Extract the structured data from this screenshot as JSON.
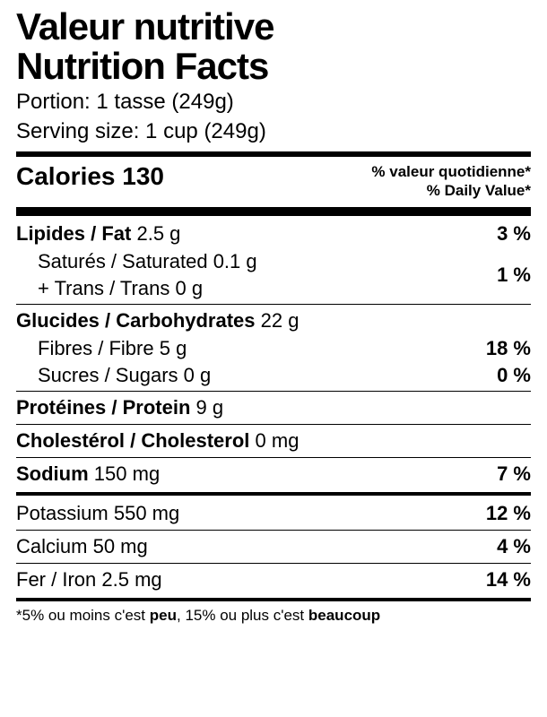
{
  "title_fr": "Valeur nutritive",
  "title_en": "Nutrition Facts",
  "serving_fr": "Portion: 1 tasse (249g)",
  "serving_en": "Serving size: 1 cup (249g)",
  "calories_label": "Calories 130",
  "dv_head_fr": "% valeur quotidienne*",
  "dv_head_en": "% Daily Value*",
  "fat": {
    "label": "Lipides / Fat",
    "amount": "2.5 g",
    "pct": "3 %"
  },
  "sat": {
    "label": "Saturés / Saturated",
    "amount": "0.1 g"
  },
  "trans": {
    "label": "+ Trans / Trans",
    "amount": "0 g"
  },
  "sat_trans_pct": "1 %",
  "carb": {
    "label": "Glucides / Carbohydrates",
    "amount": "22 g"
  },
  "fibre": {
    "label": "Fibres / Fibre",
    "amount": "5 g",
    "pct": "18 %"
  },
  "sugars": {
    "label": "Sucres / Sugars",
    "amount": "0 g",
    "pct": "0 %"
  },
  "protein": {
    "label": "Protéines / Protein",
    "amount": "9 g"
  },
  "chol": {
    "label": "Cholestérol / Cholesterol",
    "amount": "0 mg"
  },
  "sodium": {
    "label": "Sodium",
    "amount": "150 mg",
    "pct": "7 %"
  },
  "potassium": {
    "label": "Potassium",
    "amount": "550 mg",
    "pct": "12 %"
  },
  "calcium": {
    "label": "Calcium",
    "amount": "50 mg",
    "pct": "4 %"
  },
  "iron": {
    "label": "Fer / Iron",
    "amount": "2.5 mg",
    "pct": "14 %"
  },
  "note_a": "*5% ou moins c'est ",
  "note_b": "peu",
  "note_c": ", 15% ou plus c'est ",
  "note_d": "beaucoup"
}
